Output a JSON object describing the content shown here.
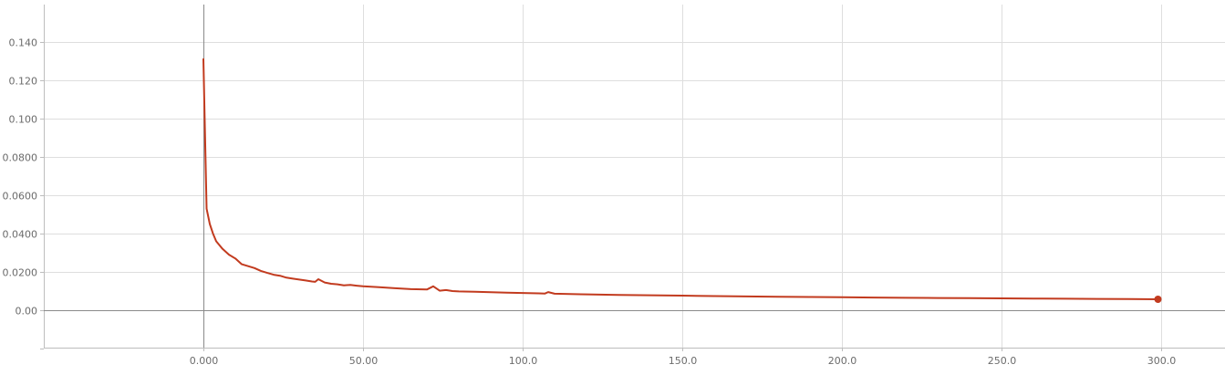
{
  "chart_data": {
    "type": "line",
    "title": "",
    "xlabel": "",
    "ylabel": "",
    "grid": true,
    "legend": "none",
    "xlim": [
      -50,
      305
    ],
    "ylim": [
      -0.02,
      0.16
    ],
    "x_ticks": [
      {
        "value": 0,
        "label": "0.000"
      },
      {
        "value": 50,
        "label": "50.00"
      },
      {
        "value": 100,
        "label": "100.0"
      },
      {
        "value": 150,
        "label": "150.0"
      },
      {
        "value": 200,
        "label": "200.0"
      },
      {
        "value": 250,
        "label": "250.0"
      },
      {
        "value": 300,
        "label": "300.0"
      }
    ],
    "y_ticks": [
      {
        "value": 0.0,
        "label": "0.00"
      },
      {
        "value": 0.02,
        "label": "0.0200"
      },
      {
        "value": 0.04,
        "label": "0.0400"
      },
      {
        "value": 0.06,
        "label": "0.0600"
      },
      {
        "value": 0.08,
        "label": "0.0800"
      },
      {
        "value": 0.1,
        "label": "0.100"
      },
      {
        "value": 0.12,
        "label": "0.120"
      },
      {
        "value": 0.14,
        "label": "0.140"
      }
    ],
    "series": [
      {
        "color": "#c23b1f",
        "x": [
          0,
          1,
          2,
          3,
          4,
          5,
          6,
          8,
          10,
          12,
          14,
          16,
          18,
          20,
          22,
          24,
          26,
          28,
          30,
          32,
          34,
          35,
          36,
          38,
          40,
          42,
          44,
          46,
          48,
          50,
          55,
          60,
          65,
          70,
          72,
          74,
          76,
          78,
          80,
          85,
          90,
          95,
          100,
          105,
          107,
          108,
          110,
          120,
          130,
          140,
          150,
          160,
          170,
          180,
          190,
          200,
          210,
          220,
          230,
          240,
          250,
          260,
          270,
          280,
          290,
          299
        ],
        "y": [
          0.131,
          0.053,
          0.045,
          0.04,
          0.036,
          0.034,
          0.032,
          0.029,
          0.027,
          0.024,
          0.023,
          0.022,
          0.0205,
          0.0195,
          0.0185,
          0.018,
          0.017,
          0.0165,
          0.016,
          0.0155,
          0.015,
          0.0148,
          0.0162,
          0.0145,
          0.0138,
          0.0135,
          0.013,
          0.0132,
          0.0128,
          0.0125,
          0.012,
          0.0115,
          0.011,
          0.0108,
          0.0125,
          0.0102,
          0.0105,
          0.01,
          0.0098,
          0.0096,
          0.0094,
          0.0092,
          0.009,
          0.0088,
          0.0087,
          0.0095,
          0.0086,
          0.0083,
          0.008,
          0.0078,
          0.0076,
          0.0074,
          0.0072,
          0.007,
          0.0069,
          0.0068,
          0.0066,
          0.0065,
          0.0064,
          0.0063,
          0.0062,
          0.0061,
          0.006,
          0.0059,
          0.0058,
          0.0057
        ]
      }
    ]
  }
}
